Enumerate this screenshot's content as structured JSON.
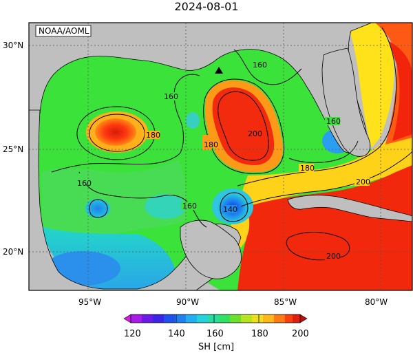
{
  "title": "2024-08-01",
  "credit": "NOAA/AOML",
  "lat_labels": [
    "30°N",
    "25°N",
    "20°N"
  ],
  "lon_labels": [
    "95°W",
    "90°W",
    "85°W",
    "80°W"
  ],
  "contour_labels": [
    "160",
    "160",
    "160",
    "160",
    "180",
    "180",
    "180",
    "200",
    "140",
    "160",
    "200",
    "200"
  ],
  "colorbar": {
    "ticks": [
      "120",
      "140",
      "160",
      "180",
      "200"
    ],
    "label": "SH [cm]"
  },
  "colors": {
    "land": "#bfbfbf",
    "red_high": "#f21c0c",
    "green_mid": "#22e01e",
    "blue_low": "#1f6df0"
  }
}
